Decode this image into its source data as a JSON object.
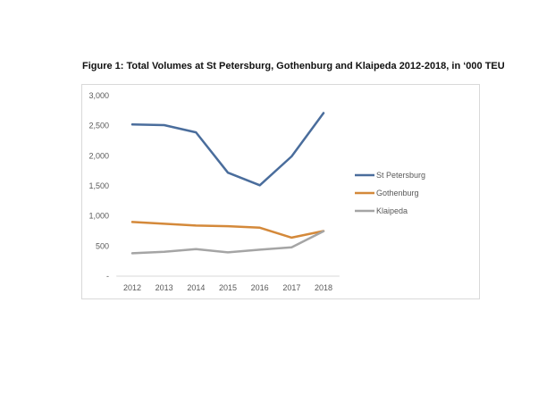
{
  "chart_data": {
    "type": "line",
    "title": "Figure 1: Total Volumes at St Petersburg, Gothenburg and Klaipeda 2012-2018, in ‘000 TEU",
    "categories": [
      "2012",
      "2013",
      "2014",
      "2015",
      "2016",
      "2017",
      "2018"
    ],
    "y_tick_labels": [
      "-",
      "500",
      "1,000",
      "1,500",
      "2,000",
      "2,500",
      "3,000"
    ],
    "y_ticks": [
      0,
      500,
      1000,
      1500,
      2000,
      2500,
      3000
    ],
    "ylim": [
      0,
      3000
    ],
    "grid": false,
    "legend_position": "right",
    "series": [
      {
        "name": "St Petersburg",
        "color": "#4a6d9c",
        "values": [
          2520,
          2510,
          2390,
          1720,
          1510,
          1990,
          2710
        ]
      },
      {
        "name": "Gothenburg",
        "color": "#d4893a",
        "values": [
          900,
          870,
          840,
          830,
          805,
          640,
          750
        ]
      },
      {
        "name": "Klaipeda",
        "color": "#a5a5a5",
        "values": [
          380,
          405,
          450,
          395,
          440,
          480,
          745
        ]
      }
    ]
  }
}
